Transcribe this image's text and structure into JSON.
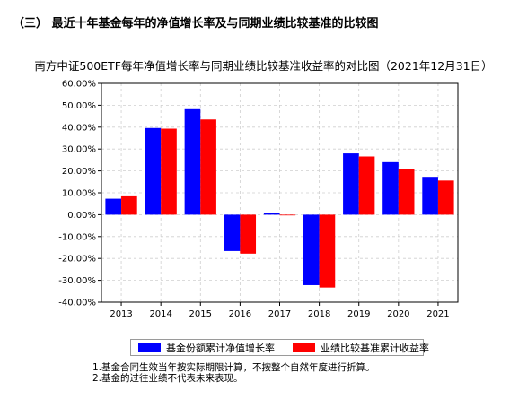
{
  "section_heading": "（三） 最近十年基金每年的净值增长率及与同期业绩比较基准的比较图",
  "chart_data": {
    "type": "bar",
    "title": "南方中证500ETF每年净值增长率与同期业绩比较基准收益率的对比图（2021年12月31日）",
    "xlabel": "",
    "ylabel": "",
    "categories": [
      "2013",
      "2014",
      "2015",
      "2016",
      "2017",
      "2018",
      "2019",
      "2020",
      "2021"
    ],
    "series": [
      {
        "name": "基金份额累计净值增长率",
        "color": "#0000ff",
        "values": [
          7.3,
          39.6,
          48.2,
          -16.6,
          0.7,
          -32.2,
          28.0,
          24.0,
          17.3
        ]
      },
      {
        "name": "业绩比较基准累计收益率",
        "color": "#ff0000",
        "values": [
          8.4,
          39.3,
          43.5,
          -17.8,
          -0.2,
          -33.3,
          26.6,
          20.9,
          15.6
        ]
      }
    ],
    "ylim": [
      -40,
      60
    ],
    "yticks": [
      -40,
      -30,
      -20,
      -10,
      0,
      10,
      20,
      30,
      40,
      50,
      60
    ],
    "ytick_format": "percent_2dp",
    "grid": true,
    "legend_position": "bottom"
  },
  "notes": [
    "1.基金合同生效当年按实际期限计算，不按整个自然年度进行折算。",
    "2.基金的过往业绩不代表未来表现。"
  ]
}
